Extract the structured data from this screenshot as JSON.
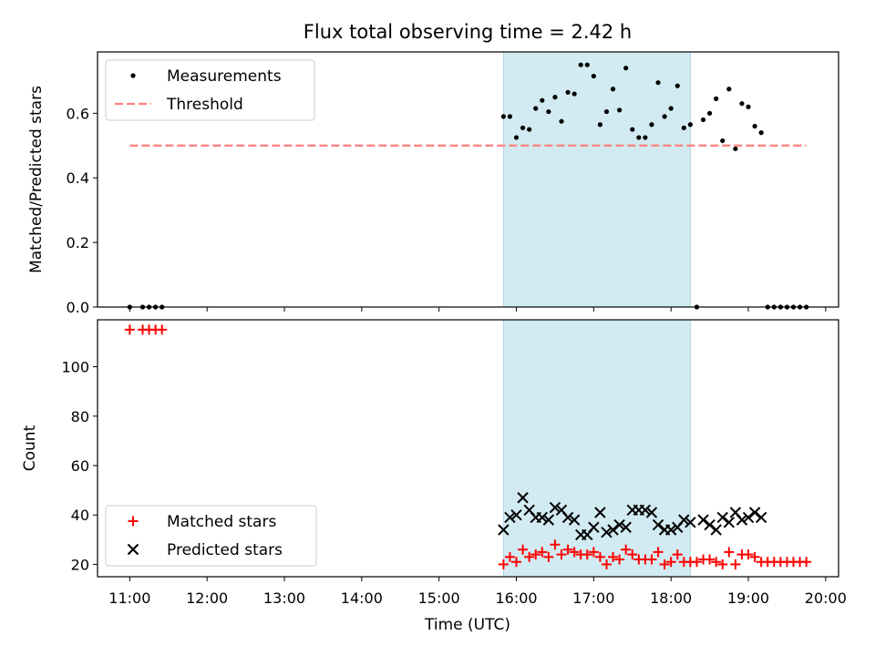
{
  "chart_data": [
    {
      "type": "scatter",
      "title": "Flux total observing time = 2.42 h",
      "xlabel": "",
      "ylabel": "Matched/Predicted stars",
      "xlim": [
        "10:35",
        "20:10"
      ],
      "ylim": [
        0,
        0.79
      ],
      "yticks": [
        0.0,
        0.2,
        0.4,
        0.6
      ],
      "ytick_labels": [
        "0.0",
        "0.2",
        "0.4",
        "0.6"
      ],
      "xticks": [
        "11:00",
        "12:00",
        "13:00",
        "14:00",
        "15:00",
        "16:00",
        "17:00",
        "18:00",
        "19:00",
        "20:00"
      ],
      "shaded_span": [
        "15:50",
        "18:15"
      ],
      "legend_position": "top-left",
      "series": [
        {
          "name": "Measurements",
          "kind": "points",
          "color": "#000000",
          "points": [
            {
              "t": "11:00",
              "v": 0.0
            },
            {
              "t": "11:10",
              "v": 0.0
            },
            {
              "t": "11:15",
              "v": 0.0
            },
            {
              "t": "11:20",
              "v": 0.0
            },
            {
              "t": "11:25",
              "v": 0.0
            },
            {
              "t": "15:50",
              "v": 0.59
            },
            {
              "t": "15:55",
              "v": 0.59
            },
            {
              "t": "16:00",
              "v": 0.525
            },
            {
              "t": "16:05",
              "v": 0.555
            },
            {
              "t": "16:10",
              "v": 0.55
            },
            {
              "t": "16:15",
              "v": 0.615
            },
            {
              "t": "16:20",
              "v": 0.64
            },
            {
              "t": "16:25",
              "v": 0.605
            },
            {
              "t": "16:30",
              "v": 0.65
            },
            {
              "t": "16:35",
              "v": 0.575
            },
            {
              "t": "16:40",
              "v": 0.665
            },
            {
              "t": "16:45",
              "v": 0.66
            },
            {
              "t": "16:50",
              "v": 0.75
            },
            {
              "t": "16:55",
              "v": 0.75
            },
            {
              "t": "17:00",
              "v": 0.715
            },
            {
              "t": "17:05",
              "v": 0.565
            },
            {
              "t": "17:10",
              "v": 0.605
            },
            {
              "t": "17:15",
              "v": 0.675
            },
            {
              "t": "17:20",
              "v": 0.61
            },
            {
              "t": "17:25",
              "v": 0.74
            },
            {
              "t": "17:30",
              "v": 0.55
            },
            {
              "t": "17:35",
              "v": 0.525
            },
            {
              "t": "17:40",
              "v": 0.525
            },
            {
              "t": "17:45",
              "v": 0.565
            },
            {
              "t": "17:50",
              "v": 0.695
            },
            {
              "t": "17:55",
              "v": 0.59
            },
            {
              "t": "18:00",
              "v": 0.615
            },
            {
              "t": "18:05",
              "v": 0.685
            },
            {
              "t": "18:10",
              "v": 0.555
            },
            {
              "t": "18:15",
              "v": 0.565
            },
            {
              "t": "18:20",
              "v": 0.0
            },
            {
              "t": "18:25",
              "v": 0.58
            },
            {
              "t": "18:30",
              "v": 0.6
            },
            {
              "t": "18:35",
              "v": 0.645
            },
            {
              "t": "18:40",
              "v": 0.515
            },
            {
              "t": "18:45",
              "v": 0.675
            },
            {
              "t": "18:50",
              "v": 0.49
            },
            {
              "t": "18:55",
              "v": 0.63
            },
            {
              "t": "19:00",
              "v": 0.62
            },
            {
              "t": "19:05",
              "v": 0.56
            },
            {
              "t": "19:10",
              "v": 0.54
            },
            {
              "t": "19:15",
              "v": 0.0
            },
            {
              "t": "19:20",
              "v": 0.0
            },
            {
              "t": "19:25",
              "v": 0.0
            },
            {
              "t": "19:30",
              "v": 0.0
            },
            {
              "t": "19:35",
              "v": 0.0
            },
            {
              "t": "19:40",
              "v": 0.0
            },
            {
              "t": "19:45",
              "v": 0.0
            }
          ]
        },
        {
          "name": "Threshold",
          "kind": "dashed-line",
          "color": "#ff7f7f",
          "points": [
            {
              "t": "11:00",
              "v": 0.5
            },
            {
              "t": "19:45",
              "v": 0.5
            }
          ]
        }
      ]
    },
    {
      "type": "scatter",
      "title": "",
      "xlabel": "Time (UTC)",
      "ylabel": "Count",
      "xlim": [
        "10:35",
        "20:10"
      ],
      "ylim": [
        15,
        119
      ],
      "yticks": [
        20,
        40,
        60,
        80,
        100
      ],
      "ytick_labels": [
        "20",
        "40",
        "60",
        "80",
        "100"
      ],
      "xticks": [
        "11:00",
        "12:00",
        "13:00",
        "14:00",
        "15:00",
        "16:00",
        "17:00",
        "18:00",
        "19:00",
        "20:00"
      ],
      "shaded_span": [
        "15:50",
        "18:15"
      ],
      "legend_position": "bottom-left",
      "series": [
        {
          "name": "Matched stars",
          "kind": "plus",
          "color": "#ff0000",
          "points": [
            {
              "t": "11:00",
              "v": 115
            },
            {
              "t": "11:10",
              "v": 115
            },
            {
              "t": "11:15",
              "v": 115
            },
            {
              "t": "11:20",
              "v": 115
            },
            {
              "t": "11:25",
              "v": 115
            },
            {
              "t": "15:50",
              "v": 20
            },
            {
              "t": "15:55",
              "v": 23
            },
            {
              "t": "16:00",
              "v": 21
            },
            {
              "t": "16:05",
              "v": 26
            },
            {
              "t": "16:10",
              "v": 23
            },
            {
              "t": "16:15",
              "v": 24
            },
            {
              "t": "16:20",
              "v": 25
            },
            {
              "t": "16:25",
              "v": 23
            },
            {
              "t": "16:30",
              "v": 28
            },
            {
              "t": "16:35",
              "v": 24
            },
            {
              "t": "16:40",
              "v": 26
            },
            {
              "t": "16:45",
              "v": 25
            },
            {
              "t": "16:50",
              "v": 24
            },
            {
              "t": "16:55",
              "v": 24
            },
            {
              "t": "17:00",
              "v": 25
            },
            {
              "t": "17:05",
              "v": 23
            },
            {
              "t": "17:10",
              "v": 20
            },
            {
              "t": "17:15",
              "v": 23
            },
            {
              "t": "17:20",
              "v": 22
            },
            {
              "t": "17:25",
              "v": 26
            },
            {
              "t": "17:30",
              "v": 24
            },
            {
              "t": "17:35",
              "v": 22
            },
            {
              "t": "17:40",
              "v": 22
            },
            {
              "t": "17:45",
              "v": 22
            },
            {
              "t": "17:50",
              "v": 25
            },
            {
              "t": "17:55",
              "v": 20
            },
            {
              "t": "18:00",
              "v": 21
            },
            {
              "t": "18:05",
              "v": 24
            },
            {
              "t": "18:10",
              "v": 21
            },
            {
              "t": "18:15",
              "v": 21
            },
            {
              "t": "18:20",
              "v": 21
            },
            {
              "t": "18:25",
              "v": 22
            },
            {
              "t": "18:30",
              "v": 22
            },
            {
              "t": "18:35",
              "v": 21
            },
            {
              "t": "18:40",
              "v": 20
            },
            {
              "t": "18:45",
              "v": 25
            },
            {
              "t": "18:50",
              "v": 20
            },
            {
              "t": "18:55",
              "v": 24
            },
            {
              "t": "19:00",
              "v": 24
            },
            {
              "t": "19:05",
              "v": 23
            },
            {
              "t": "19:10",
              "v": 21
            },
            {
              "t": "19:15",
              "v": 21
            },
            {
              "t": "19:20",
              "v": 21
            },
            {
              "t": "19:25",
              "v": 21
            },
            {
              "t": "19:30",
              "v": 21
            },
            {
              "t": "19:35",
              "v": 21
            },
            {
              "t": "19:40",
              "v": 21
            },
            {
              "t": "19:45",
              "v": 21
            }
          ]
        },
        {
          "name": "Predicted stars",
          "kind": "cross",
          "color": "#000000",
          "points": [
            {
              "t": "15:50",
              "v": 34
            },
            {
              "t": "15:55",
              "v": 39
            },
            {
              "t": "16:00",
              "v": 40
            },
            {
              "t": "16:05",
              "v": 47
            },
            {
              "t": "16:10",
              "v": 42
            },
            {
              "t": "16:15",
              "v": 39
            },
            {
              "t": "16:20",
              "v": 39
            },
            {
              "t": "16:25",
              "v": 38
            },
            {
              "t": "16:30",
              "v": 43
            },
            {
              "t": "16:35",
              "v": 42
            },
            {
              "t": "16:40",
              "v": 39
            },
            {
              "t": "16:45",
              "v": 38
            },
            {
              "t": "16:50",
              "v": 32
            },
            {
              "t": "16:55",
              "v": 32
            },
            {
              "t": "17:00",
              "v": 35
            },
            {
              "t": "17:05",
              "v": 41
            },
            {
              "t": "17:10",
              "v": 33
            },
            {
              "t": "17:15",
              "v": 34
            },
            {
              "t": "17:20",
              "v": 36
            },
            {
              "t": "17:25",
              "v": 35
            },
            {
              "t": "17:30",
              "v": 42
            },
            {
              "t": "17:35",
              "v": 42
            },
            {
              "t": "17:40",
              "v": 42
            },
            {
              "t": "17:45",
              "v": 41
            },
            {
              "t": "17:50",
              "v": 36
            },
            {
              "t": "17:55",
              "v": 34
            },
            {
              "t": "18:00",
              "v": 34
            },
            {
              "t": "18:05",
              "v": 35
            },
            {
              "t": "18:10",
              "v": 38
            },
            {
              "t": "18:15",
              "v": 37
            },
            {
              "t": "18:25",
              "v": 38
            },
            {
              "t": "18:30",
              "v": 36
            },
            {
              "t": "18:35",
              "v": 34
            },
            {
              "t": "18:40",
              "v": 39
            },
            {
              "t": "18:45",
              "v": 37
            },
            {
              "t": "18:50",
              "v": 41
            },
            {
              "t": "18:55",
              "v": 38
            },
            {
              "t": "19:00",
              "v": 39
            },
            {
              "t": "19:05",
              "v": 41
            },
            {
              "t": "19:10",
              "v": 39
            }
          ]
        }
      ]
    }
  ]
}
